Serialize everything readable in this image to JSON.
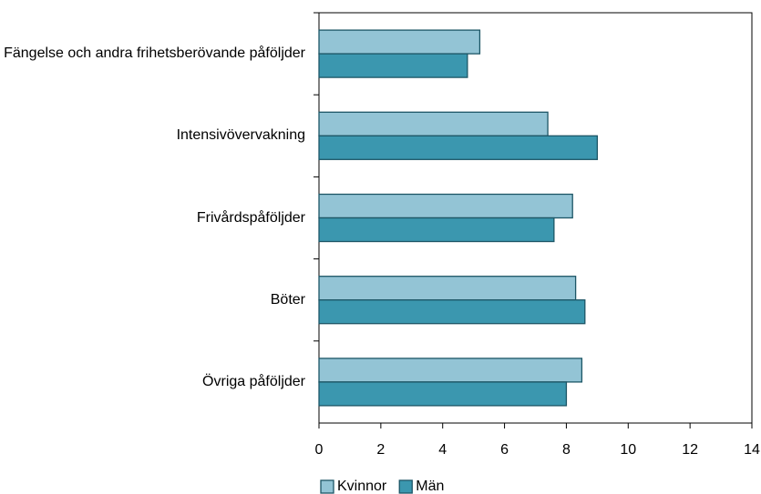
{
  "chart_data": {
    "type": "bar",
    "orientation": "horizontal",
    "categories": [
      "Fängelse och andra frihetsberövande påföljder",
      "Intensivövervakning",
      "Frivårdspåföljder",
      "Böter",
      "Övriga påföljder"
    ],
    "series": [
      {
        "name": "Kvinnor",
        "color": "#93c4d5",
        "values": [
          5.2,
          7.4,
          8.2,
          8.3,
          8.5
        ]
      },
      {
        "name": "Män",
        "color": "#3b97af",
        "values": [
          4.8,
          9.0,
          7.6,
          8.6,
          8.0
        ]
      }
    ],
    "xlim": [
      0,
      14
    ],
    "xticks": [
      0,
      2,
      4,
      6,
      8,
      10,
      12,
      14
    ],
    "grid": false,
    "legend": "bottom"
  }
}
